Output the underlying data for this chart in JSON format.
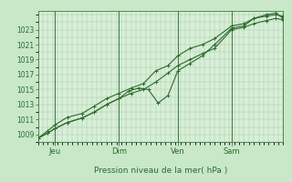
{
  "background_color": "#c8e8c8",
  "plot_bg_color": "#d8eed8",
  "grid_color": "#a0c8a0",
  "line_color": "#2d6a2d",
  "marker_color": "#2d6a2d",
  "ylabel_ticks": [
    1009,
    1011,
    1013,
    1015,
    1017,
    1019,
    1021,
    1023
  ],
  "ylim": [
    1008.0,
    1025.5
  ],
  "xlim": [
    0.0,
    1.0
  ],
  "xlabel": "Pression niveau de la mer( hPa )",
  "xtick_labels": [
    "Jeu",
    "Dim",
    "Ven",
    "Sam"
  ],
  "xtick_positions": [
    0.07,
    0.33,
    0.57,
    0.79
  ],
  "vline_positions": [
    0.07,
    0.33,
    0.57,
    0.79
  ],
  "line1_x": [
    0.0,
    0.04,
    0.07,
    0.12,
    0.18,
    0.23,
    0.28,
    0.33,
    0.38,
    0.43,
    0.48,
    0.53,
    0.57,
    0.62,
    0.67,
    0.72,
    0.79,
    0.84,
    0.88,
    0.93,
    0.97,
    1.0
  ],
  "line1_y": [
    1008.5,
    1009.2,
    1009.8,
    1010.6,
    1011.2,
    1012.0,
    1013.0,
    1013.8,
    1014.5,
    1015.0,
    1016.0,
    1017.2,
    1018.2,
    1019.0,
    1019.8,
    1020.5,
    1023.0,
    1023.3,
    1023.8,
    1024.2,
    1024.5,
    1024.3
  ],
  "line2_x": [
    0.0,
    0.04,
    0.07,
    0.12,
    0.18,
    0.23,
    0.28,
    0.33,
    0.37,
    0.41,
    0.45,
    0.49,
    0.53,
    0.57,
    0.62,
    0.67,
    0.72,
    0.79,
    0.84,
    0.88,
    0.93,
    0.97,
    1.0
  ],
  "line2_y": [
    1008.5,
    1009.2,
    1009.8,
    1010.6,
    1011.2,
    1012.0,
    1013.0,
    1013.8,
    1014.8,
    1015.2,
    1015.0,
    1013.2,
    1014.2,
    1017.5,
    1018.5,
    1019.5,
    1021.0,
    1023.2,
    1023.5,
    1024.5,
    1025.0,
    1025.2,
    1024.5
  ],
  "line3_x": [
    0.0,
    0.04,
    0.07,
    0.12,
    0.18,
    0.23,
    0.28,
    0.33,
    0.38,
    0.43,
    0.48,
    0.53,
    0.57,
    0.62,
    0.67,
    0.72,
    0.79,
    0.84,
    0.88,
    0.93,
    0.97,
    1.0
  ],
  "line3_y": [
    1008.5,
    1009.5,
    1010.3,
    1011.3,
    1011.8,
    1012.8,
    1013.8,
    1014.5,
    1015.2,
    1015.8,
    1017.5,
    1018.2,
    1019.5,
    1020.5,
    1021.0,
    1021.8,
    1023.5,
    1023.8,
    1024.5,
    1024.8,
    1025.0,
    1024.8
  ]
}
